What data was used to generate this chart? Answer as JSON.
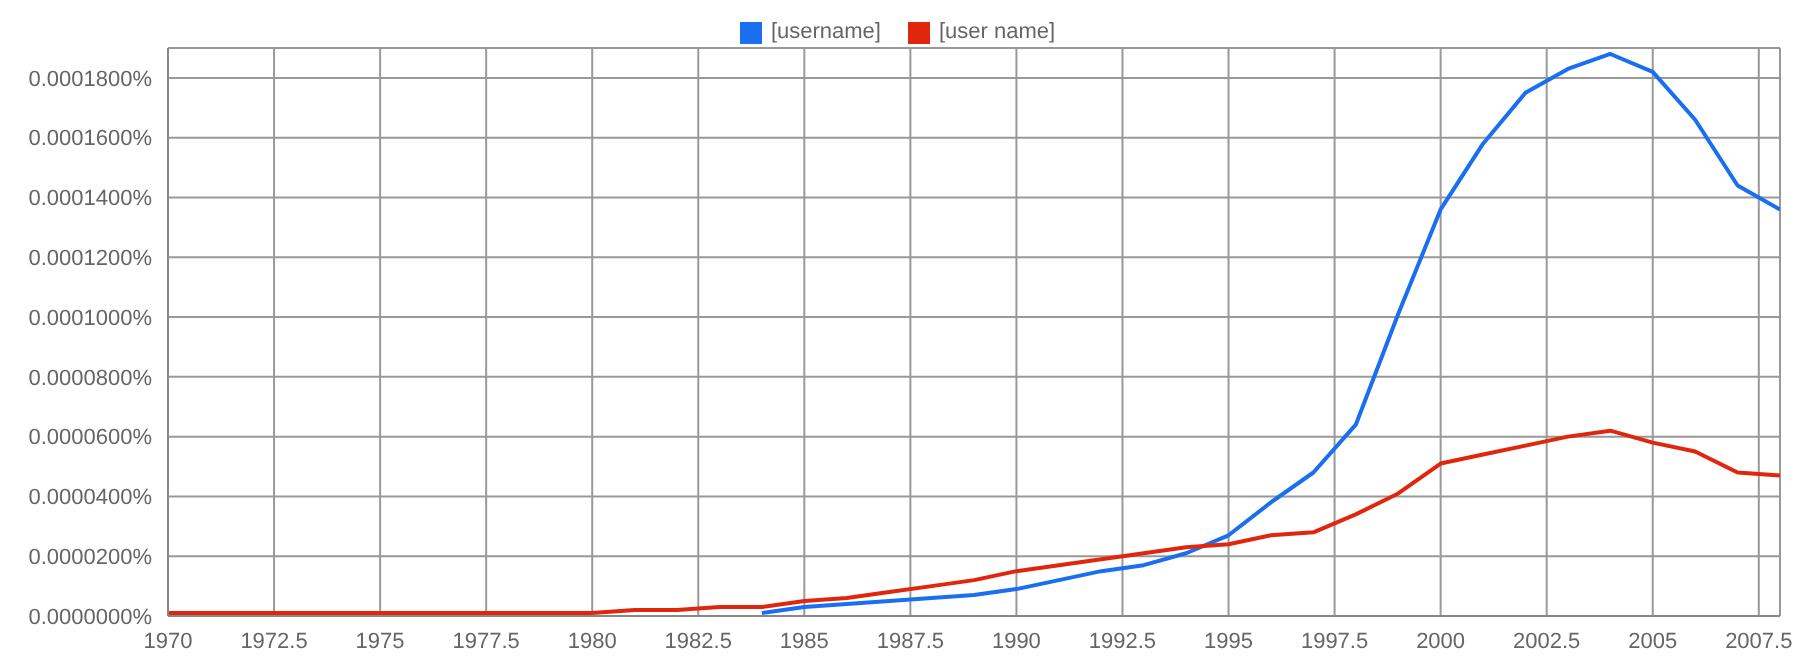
{
  "chart_data": {
    "type": "line",
    "x": [
      1970,
      1971,
      1972,
      1973,
      1974,
      1975,
      1976,
      1977,
      1978,
      1979,
      1980,
      1981,
      1982,
      1983,
      1984,
      1985,
      1986,
      1987,
      1988,
      1989,
      1990,
      1991,
      1992,
      1993,
      1994,
      1995,
      1996,
      1997,
      1998,
      1999,
      2000,
      2001,
      2002,
      2003,
      2004,
      2005,
      2006,
      2007,
      2008
    ],
    "series": [
      {
        "name": "[username]",
        "color": "#1a6ef0",
        "values": [
          null,
          null,
          null,
          null,
          null,
          null,
          null,
          null,
          null,
          null,
          null,
          null,
          null,
          null,
          1e-06,
          3e-06,
          4e-06,
          5e-06,
          6e-06,
          7e-06,
          9e-06,
          1.2e-05,
          1.5e-05,
          1.7e-05,
          2.1e-05,
          2.7e-05,
          3.8e-05,
          4.8e-05,
          6.4e-05,
          0.000101,
          0.000136,
          0.000158,
          0.000175,
          0.000183,
          0.000188,
          0.000182,
          0.000166,
          0.000144,
          0.000136
        ]
      },
      {
        "name": "[user name]",
        "color": "#e0260c",
        "values": [
          1e-06,
          1e-06,
          1e-06,
          1e-06,
          1e-06,
          1e-06,
          1e-06,
          1e-06,
          1e-06,
          1e-06,
          1e-06,
          2e-06,
          2e-06,
          3e-06,
          3e-06,
          5e-06,
          6e-06,
          8e-06,
          1e-05,
          1.2e-05,
          1.5e-05,
          1.7e-05,
          1.9e-05,
          2.1e-05,
          2.3e-05,
          2.4e-05,
          2.7e-05,
          2.8e-05,
          3.4e-05,
          4.1e-05,
          5.1e-05,
          5.4e-05,
          5.7e-05,
          6e-05,
          6.2e-05,
          5.8e-05,
          5.5e-05,
          4.8e-05,
          4.7e-05
        ]
      }
    ],
    "xlim": [
      1970,
      2008
    ],
    "xticks": [
      1970,
      1972.5,
      1975,
      1977.5,
      1980,
      1982.5,
      1985,
      1987.5,
      1990,
      1992.5,
      1995,
      1997.5,
      2000,
      2002.5,
      2005,
      2007.5
    ],
    "ylim": [
      0,
      0.00019
    ],
    "yticks": [
      {
        "value": 0,
        "label": "0.0000000%"
      },
      {
        "value": 2e-05,
        "label": "0.0000200%"
      },
      {
        "value": 4e-05,
        "label": "0.0000400%"
      },
      {
        "value": 6e-05,
        "label": "0.0000600%"
      },
      {
        "value": 8e-05,
        "label": "0.0000800%"
      },
      {
        "value": 0.0001,
        "label": "0.0001000%"
      },
      {
        "value": 0.00012,
        "label": "0.0001200%"
      },
      {
        "value": 0.00014,
        "label": "0.0001400%"
      },
      {
        "value": 0.00016,
        "label": "0.0001600%"
      },
      {
        "value": 0.00018,
        "label": "0.0001800%"
      }
    ],
    "grid": true,
    "legend": "top",
    "marker": "none",
    "line_style": "solid"
  }
}
